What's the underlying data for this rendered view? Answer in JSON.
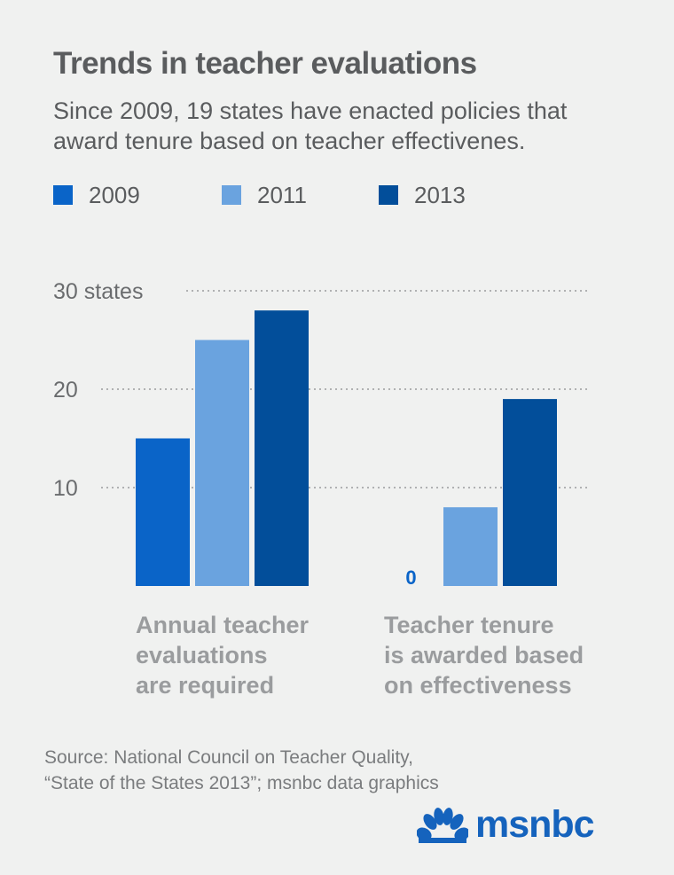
{
  "chart_data": {
    "type": "bar",
    "title": "Trends in teacher evaluations",
    "subtitle": "Since 2009, 19 states have enacted policies that award tenure based on teacher effectivenes.",
    "categories": [
      "Annual teacher evaluations are required",
      "Teacher tenure is awarded based on effectiveness"
    ],
    "series": [
      {
        "name": "2009",
        "color": "#0a64c8",
        "values": [
          15,
          0
        ]
      },
      {
        "name": "2011",
        "color": "#6aa3df",
        "values": [
          25,
          8
        ]
      },
      {
        "name": "2013",
        "color": "#024e9a",
        "values": [
          28,
          19
        ]
      }
    ],
    "ylim": [
      0,
      30
    ],
    "yticks": [
      {
        "value": 10,
        "label": "10"
      },
      {
        "value": 20,
        "label": "20"
      },
      {
        "value": 30,
        "label": "30 states"
      }
    ],
    "zero_label": "0",
    "grid": "dotted horizontal",
    "legend": "top"
  },
  "group_labels": [
    [
      "Annual teacher",
      "evaluations",
      "are required"
    ],
    [
      "Teacher tenure",
      "is awarded based",
      "on effectiveness"
    ]
  ],
  "source": [
    "Source: National Council on Teacher Quality,",
    "“State of the States 2013”; msnbc data graphics"
  ],
  "logo": {
    "text": "msnbc",
    "icon": "peacock-icon",
    "color": "#1563bd"
  }
}
